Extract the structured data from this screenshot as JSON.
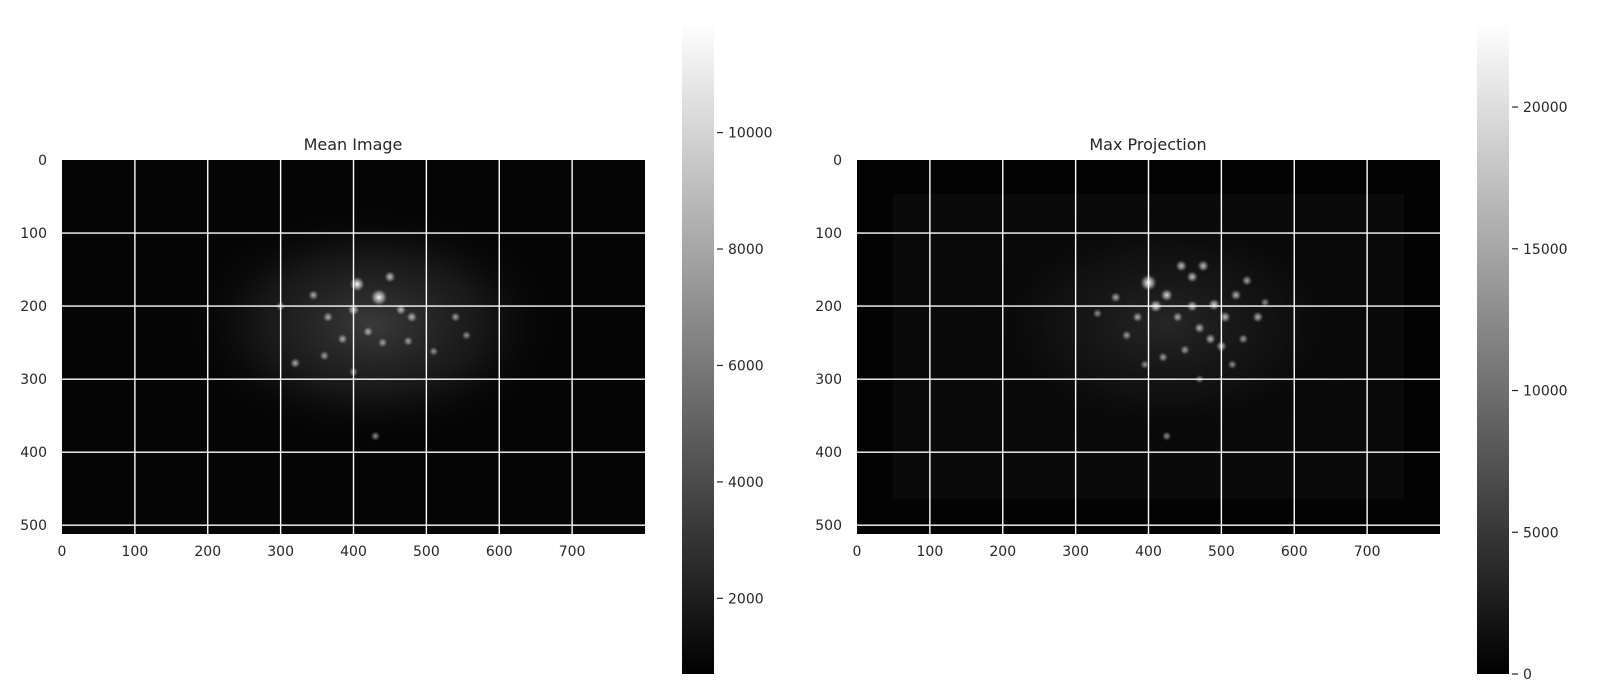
{
  "chart_data": [
    {
      "type": "heatmap",
      "title": "Mean Image",
      "xlabel": "",
      "ylabel": "",
      "xlim": [
        0,
        800
      ],
      "ylim": [
        512,
        0
      ],
      "x_ticks": [
        0,
        100,
        200,
        300,
        400,
        500,
        600,
        700
      ],
      "y_ticks": [
        0,
        100,
        200,
        300,
        400,
        500
      ],
      "grid": true,
      "colormap": "gray",
      "colorbar": {
        "min": 700,
        "max": 11900,
        "ticks": [
          2000,
          4000,
          6000,
          8000,
          10000
        ]
      },
      "bright_spots": [
        {
          "x": 405,
          "y": 170,
          "intensity": 0.8
        },
        {
          "x": 435,
          "y": 188,
          "intensity": 1.0
        },
        {
          "x": 400,
          "y": 205,
          "intensity": 0.5
        },
        {
          "x": 450,
          "y": 160,
          "intensity": 0.45
        },
        {
          "x": 465,
          "y": 205,
          "intensity": 0.4
        },
        {
          "x": 480,
          "y": 215,
          "intensity": 0.4
        },
        {
          "x": 365,
          "y": 215,
          "intensity": 0.35
        },
        {
          "x": 345,
          "y": 185,
          "intensity": 0.35
        },
        {
          "x": 420,
          "y": 235,
          "intensity": 0.35
        },
        {
          "x": 385,
          "y": 245,
          "intensity": 0.35
        },
        {
          "x": 440,
          "y": 250,
          "intensity": 0.3
        },
        {
          "x": 320,
          "y": 278,
          "intensity": 0.35
        },
        {
          "x": 360,
          "y": 268,
          "intensity": 0.3
        },
        {
          "x": 475,
          "y": 248,
          "intensity": 0.3
        },
        {
          "x": 540,
          "y": 215,
          "intensity": 0.3
        },
        {
          "x": 300,
          "y": 200,
          "intensity": 0.25
        },
        {
          "x": 510,
          "y": 262,
          "intensity": 0.25
        },
        {
          "x": 430,
          "y": 378,
          "intensity": 0.25
        },
        {
          "x": 400,
          "y": 290,
          "intensity": 0.25
        },
        {
          "x": 555,
          "y": 240,
          "intensity": 0.25
        }
      ]
    },
    {
      "type": "heatmap",
      "title": "Max Projection",
      "xlabel": "",
      "ylabel": "",
      "xlim": [
        0,
        800
      ],
      "ylim": [
        512,
        0
      ],
      "x_ticks": [
        0,
        100,
        200,
        300,
        400,
        500,
        600,
        700
      ],
      "y_ticks": [
        0,
        100,
        200,
        300,
        400,
        500
      ],
      "grid": true,
      "colormap": "gray",
      "colorbar": {
        "min": 0,
        "max": 23000,
        "ticks": [
          0,
          5000,
          10000,
          15000,
          20000
        ]
      },
      "bright_spots": [
        {
          "x": 400,
          "y": 168,
          "intensity": 0.95
        },
        {
          "x": 410,
          "y": 200,
          "intensity": 0.6
        },
        {
          "x": 425,
          "y": 185,
          "intensity": 0.55
        },
        {
          "x": 445,
          "y": 145,
          "intensity": 0.45
        },
        {
          "x": 460,
          "y": 160,
          "intensity": 0.45
        },
        {
          "x": 475,
          "y": 145,
          "intensity": 0.45
        },
        {
          "x": 490,
          "y": 198,
          "intensity": 0.5
        },
        {
          "x": 505,
          "y": 215,
          "intensity": 0.45
        },
        {
          "x": 520,
          "y": 185,
          "intensity": 0.4
        },
        {
          "x": 535,
          "y": 165,
          "intensity": 0.35
        },
        {
          "x": 550,
          "y": 215,
          "intensity": 0.4
        },
        {
          "x": 460,
          "y": 200,
          "intensity": 0.45
        },
        {
          "x": 470,
          "y": 230,
          "intensity": 0.4
        },
        {
          "x": 485,
          "y": 245,
          "intensity": 0.4
        },
        {
          "x": 500,
          "y": 255,
          "intensity": 0.4
        },
        {
          "x": 440,
          "y": 215,
          "intensity": 0.35
        },
        {
          "x": 385,
          "y": 215,
          "intensity": 0.35
        },
        {
          "x": 370,
          "y": 240,
          "intensity": 0.3
        },
        {
          "x": 355,
          "y": 188,
          "intensity": 0.35
        },
        {
          "x": 330,
          "y": 210,
          "intensity": 0.25
        },
        {
          "x": 450,
          "y": 260,
          "intensity": 0.3
        },
        {
          "x": 420,
          "y": 270,
          "intensity": 0.3
        },
        {
          "x": 395,
          "y": 280,
          "intensity": 0.25
        },
        {
          "x": 530,
          "y": 245,
          "intensity": 0.3
        },
        {
          "x": 515,
          "y": 280,
          "intensity": 0.25
        },
        {
          "x": 425,
          "y": 378,
          "intensity": 0.25
        },
        {
          "x": 470,
          "y": 300,
          "intensity": 0.2
        },
        {
          "x": 560,
          "y": 195,
          "intensity": 0.25
        }
      ]
    }
  ]
}
